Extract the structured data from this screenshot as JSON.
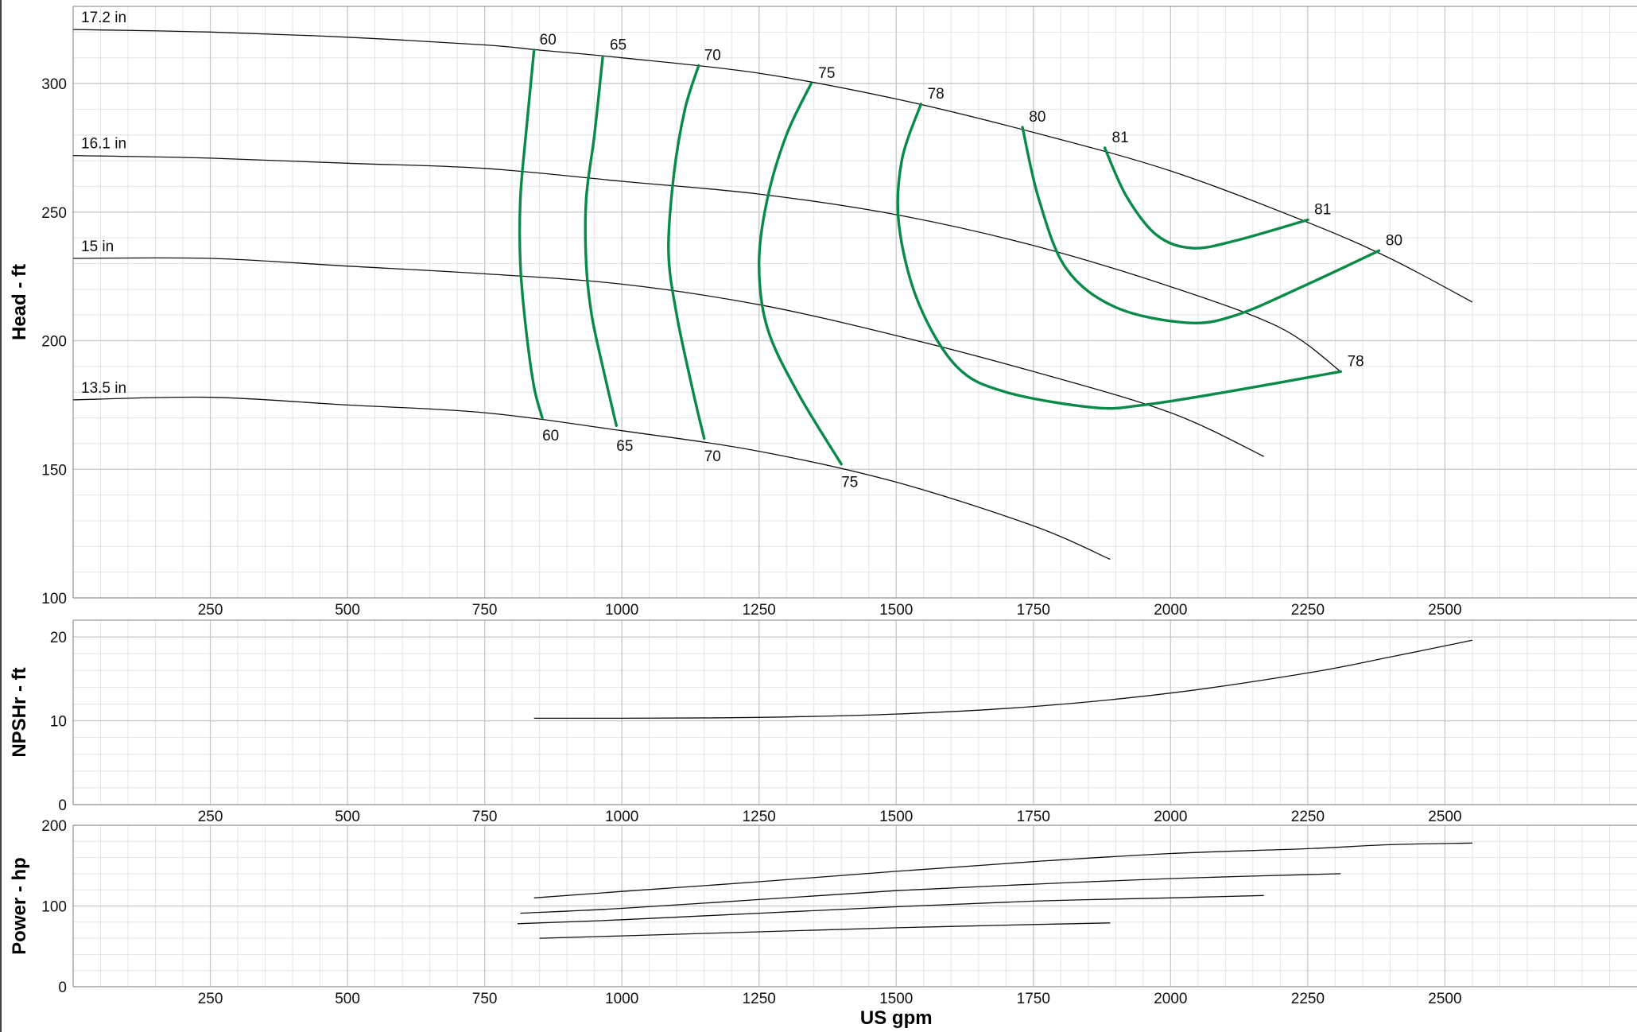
{
  "chart_data": [
    {
      "type": "line",
      "panel": "head",
      "ylabel": "Head - ft",
      "xlim": [
        0,
        2850
      ],
      "ylim": [
        100,
        330
      ],
      "yticks": [
        100,
        150,
        200,
        250,
        300
      ],
      "xticks": [
        250,
        500,
        750,
        1000,
        1250,
        1500,
        1750,
        2000,
        2250,
        2500
      ],
      "grid": true,
      "impeller_curves": [
        {
          "name": "17.2 in",
          "points": [
            [
              0,
              321
            ],
            [
              250,
              320
            ],
            [
              500,
              318
            ],
            [
              750,
              315
            ],
            [
              850,
              313
            ],
            [
              1000,
              310
            ],
            [
              1250,
              304
            ],
            [
              1500,
              294
            ],
            [
              1750,
              281
            ],
            [
              2000,
              266
            ],
            [
              2250,
              246
            ],
            [
              2400,
              232
            ],
            [
              2550,
              215
            ]
          ]
        },
        {
          "name": "16.1 in",
          "points": [
            [
              0,
              272
            ],
            [
              250,
              271
            ],
            [
              500,
              269
            ],
            [
              750,
              267
            ],
            [
              1000,
              262
            ],
            [
              1250,
              257
            ],
            [
              1500,
              249
            ],
            [
              1750,
              237
            ],
            [
              2000,
              221
            ],
            [
              2200,
              205
            ],
            [
              2310,
              188
            ]
          ]
        },
        {
          "name": "15 in",
          "points": [
            [
              0,
              232
            ],
            [
              250,
              232
            ],
            [
              500,
              229
            ],
            [
              750,
              226
            ],
            [
              1000,
              222
            ],
            [
              1250,
              214
            ],
            [
              1500,
              202
            ],
            [
              1750,
              188
            ],
            [
              2000,
              172
            ],
            [
              2170,
              155
            ]
          ]
        },
        {
          "name": "13.5 in",
          "points": [
            [
              0,
              177
            ],
            [
              250,
              178
            ],
            [
              500,
              175
            ],
            [
              750,
              172
            ],
            [
              1000,
              165
            ],
            [
              1250,
              157
            ],
            [
              1500,
              145
            ],
            [
              1750,
              128
            ],
            [
              1890,
              115
            ]
          ]
        }
      ],
      "efficiency_curves": [
        {
          "name": "60",
          "points": [
            [
              840,
              313
            ],
            [
              825,
              280
            ],
            [
              815,
              255
            ],
            [
              815,
              230
            ],
            [
              825,
              205
            ],
            [
              840,
              182
            ],
            [
              855,
              170
            ]
          ]
        },
        {
          "name": "65",
          "points": [
            [
              965,
              310
            ],
            [
              950,
              280
            ],
            [
              935,
              255
            ],
            [
              935,
              230
            ],
            [
              945,
              210
            ],
            [
              965,
              190
            ],
            [
              990,
              167
            ]
          ]
        },
        {
          "name": "70",
          "points": [
            [
              1140,
              307
            ],
            [
              1115,
              290
            ],
            [
              1095,
              265
            ],
            [
              1085,
              235
            ],
            [
              1100,
              210
            ],
            [
              1130,
              180
            ],
            [
              1150,
              162
            ]
          ]
        },
        {
          "name": "75",
          "points": [
            [
              1345,
              300
            ],
            [
              1300,
              280
            ],
            [
              1265,
              255
            ],
            [
              1250,
              230
            ],
            [
              1265,
              205
            ],
            [
              1320,
              180
            ],
            [
              1400,
              152
            ]
          ]
        },
        {
          "name": "78",
          "points": [
            [
              1545,
              292
            ],
            [
              1510,
              270
            ],
            [
              1505,
              245
            ],
            [
              1540,
              215
            ],
            [
              1610,
              190
            ],
            [
              1700,
              180
            ],
            [
              1860,
              174
            ],
            [
              1950,
              175
            ],
            [
              2100,
              180
            ],
            [
              2310,
              188
            ]
          ]
        },
        {
          "name": "80",
          "points": [
            [
              1730,
              283
            ],
            [
              1760,
              255
            ],
            [
              1810,
              228
            ],
            [
              1900,
              213
            ],
            [
              2030,
              207
            ],
            [
              2120,
              210
            ],
            [
              2250,
              222
            ],
            [
              2380,
              235
            ]
          ]
        },
        {
          "name": "81",
          "points": [
            [
              1880,
              275
            ],
            [
              1920,
              256
            ],
            [
              1975,
              241
            ],
            [
              2040,
              236
            ],
            [
              2120,
              239
            ],
            [
              2250,
              247
            ]
          ]
        }
      ],
      "curve_labels": [
        {
          "text": "60",
          "at": [
            850,
            317
          ]
        },
        {
          "text": "65",
          "at": [
            978,
            315
          ]
        },
        {
          "text": "70",
          "at": [
            1150,
            311
          ]
        },
        {
          "text": "75",
          "at": [
            1358,
            304
          ]
        },
        {
          "text": "78",
          "at": [
            1557,
            296
          ]
        },
        {
          "text": "80",
          "at": [
            1742,
            287
          ]
        },
        {
          "text": "81",
          "at": [
            1893,
            279
          ]
        },
        {
          "text": "81",
          "at": [
            2262,
            251
          ]
        },
        {
          "text": "80",
          "at": [
            2392,
            239
          ]
        },
        {
          "text": "78",
          "at": [
            2322,
            192
          ]
        },
        {
          "text": "60",
          "at": [
            855,
            163
          ]
        },
        {
          "text": "65",
          "at": [
            990,
            159
          ]
        },
        {
          "text": "70",
          "at": [
            1150,
            155
          ]
        },
        {
          "text": "75",
          "at": [
            1400,
            145
          ]
        }
      ]
    },
    {
      "type": "line",
      "panel": "npshr",
      "ylabel": "NPSHr - ft",
      "xlim": [
        0,
        2850
      ],
      "ylim": [
        0,
        22
      ],
      "yticks": [
        0,
        10,
        20
      ],
      "xticks": [
        250,
        500,
        750,
        1000,
        1250,
        1500,
        1750,
        2000,
        2250,
        2500
      ],
      "grid": true,
      "series": [
        {
          "name": "",
          "points": [
            [
              840,
              10.3
            ],
            [
              1000,
              10.3
            ],
            [
              1250,
              10.4
            ],
            [
              1500,
              10.8
            ],
            [
              1750,
              11.7
            ],
            [
              2000,
              13.3
            ],
            [
              2250,
              15.7
            ],
            [
              2400,
              17.6
            ],
            [
              2550,
              19.6
            ]
          ]
        }
      ]
    },
    {
      "type": "line",
      "panel": "power",
      "ylabel": "Power - hp",
      "xlabel": "US gpm",
      "xlim": [
        0,
        2850
      ],
      "ylim": [
        0,
        200
      ],
      "yticks": [
        0,
        100,
        200
      ],
      "xticks": [
        250,
        500,
        750,
        1000,
        1250,
        1500,
        1750,
        2000,
        2250,
        2500
      ],
      "grid": true,
      "series": [
        {
          "name": "",
          "points": [
            [
              840,
              110
            ],
            [
              1000,
              118
            ],
            [
              1250,
              130
            ],
            [
              1500,
              143
            ],
            [
              1750,
              155
            ],
            [
              2000,
              165
            ],
            [
              2250,
              171
            ],
            [
              2400,
              176
            ],
            [
              2550,
              178
            ]
          ]
        },
        {
          "name": "",
          "points": [
            [
              815,
              91
            ],
            [
              1000,
              97
            ],
            [
              1250,
              108
            ],
            [
              1500,
              119
            ],
            [
              1750,
              127
            ],
            [
              2000,
              134
            ],
            [
              2310,
              140
            ]
          ]
        },
        {
          "name": "",
          "points": [
            [
              810,
              78
            ],
            [
              1000,
              83
            ],
            [
              1250,
              91
            ],
            [
              1500,
              99
            ],
            [
              1750,
              106
            ],
            [
              2000,
              110
            ],
            [
              2170,
              113
            ]
          ]
        },
        {
          "name": "",
          "points": [
            [
              850,
              60
            ],
            [
              1000,
              63
            ],
            [
              1250,
              68
            ],
            [
              1500,
              73
            ],
            [
              1750,
              77
            ],
            [
              1890,
              79
            ]
          ]
        }
      ]
    }
  ]
}
